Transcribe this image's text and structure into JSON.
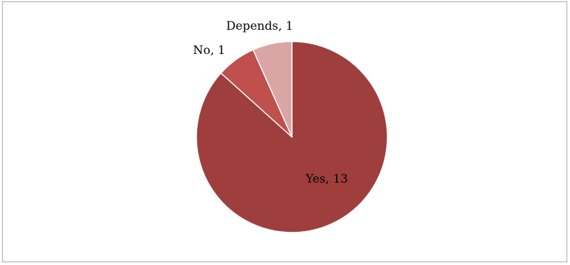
{
  "chart_data": {
    "type": "pie",
    "categories": [
      "Yes",
      "No",
      "Depends"
    ],
    "values": [
      13,
      1,
      1
    ],
    "colors": [
      "#9e3f3e",
      "#c0504d",
      "#d9a6a5"
    ],
    "data_labels": [
      "Yes, 13",
      "No, 1",
      "Depends, 1"
    ],
    "legend": "none",
    "start_angle": "12 o'clock",
    "direction": "clockwise"
  }
}
